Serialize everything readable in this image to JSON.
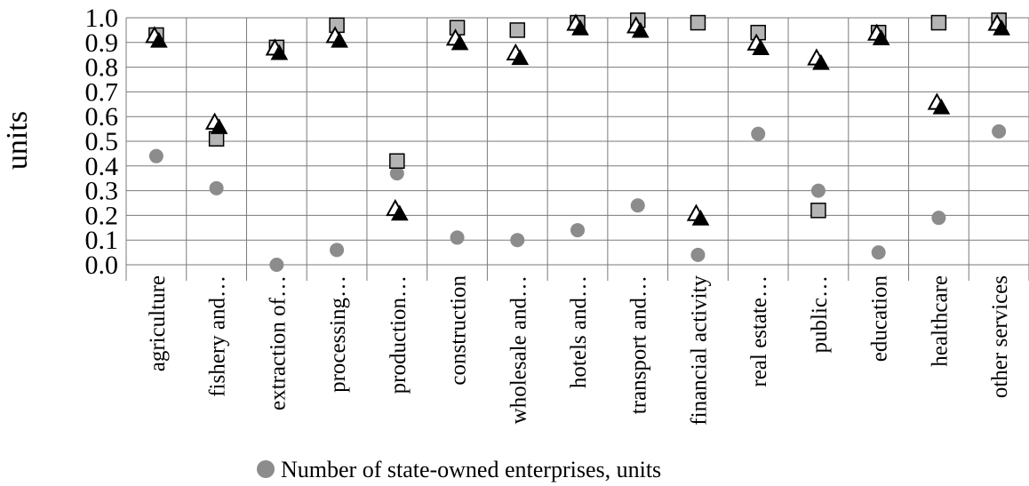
{
  "chart_data": {
    "type": "scatter",
    "title": "",
    "xlabel": "",
    "ylabel": "units",
    "ylim": [
      0,
      1
    ],
    "yticks": [
      "0.0",
      "0.1",
      "0.2",
      "0.3",
      "0.4",
      "0.5",
      "0.6",
      "0.7",
      "0.8",
      "0.9",
      "1.0"
    ],
    "grid": true,
    "categories": [
      "agriculture",
      "fishery and…",
      "extraction of…",
      "processing…",
      "production…",
      "construction",
      "wholesale and…",
      "hotels and…",
      "transport and…",
      "financial activity",
      "real estate…",
      "public…",
      "education",
      "healthcare",
      "other services"
    ],
    "series": [
      {
        "name": "Number of state-owned enterprises, units",
        "marker": "circle",
        "color": "#8c8c8c",
        "values": [
          0.44,
          0.31,
          0.0,
          0.06,
          0.37,
          0.11,
          0.1,
          0.14,
          0.24,
          0.04,
          0.53,
          0.3,
          0.05,
          0.19,
          0.54
        ]
      },
      {
        "marker": "square",
        "color": "#b4b4b4",
        "values": [
          0.93,
          0.51,
          0.88,
          0.97,
          0.42,
          0.96,
          0.95,
          0.98,
          0.99,
          0.98,
          0.94,
          0.22,
          0.94,
          0.98,
          0.99
        ]
      },
      {
        "marker": "triangle-outline",
        "color": "#ffffff",
        "values": [
          0.93,
          0.58,
          0.88,
          0.93,
          0.23,
          0.92,
          0.86,
          0.98,
          0.97,
          0.21,
          0.9,
          0.84,
          0.94,
          0.66,
          0.98
        ]
      },
      {
        "marker": "triangle-filled",
        "color": "#000000",
        "values": [
          0.91,
          0.56,
          0.86,
          0.91,
          0.21,
          0.9,
          0.84,
          0.96,
          0.95,
          0.19,
          0.88,
          0.82,
          0.92,
          0.64,
          0.96
        ]
      }
    ],
    "legend": {
      "position": "bottom",
      "entries": [
        "Number of state-owned enterprises, units"
      ]
    }
  }
}
